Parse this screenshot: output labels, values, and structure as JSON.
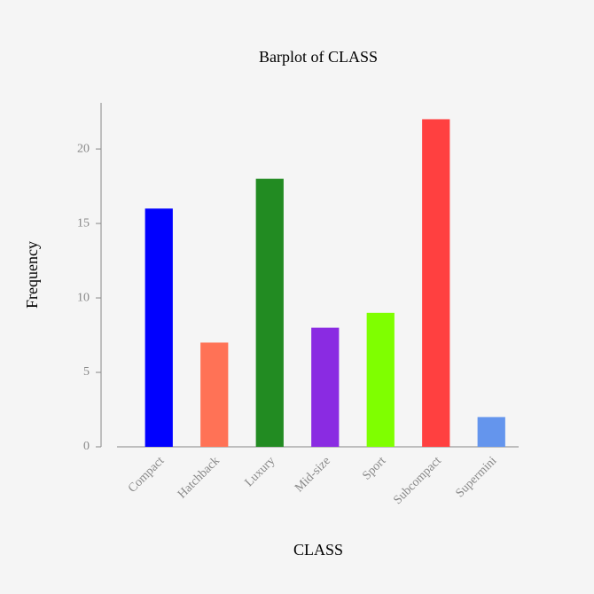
{
  "chart_data": {
    "type": "bar",
    "title": "Barplot of CLASS",
    "x_label": "CLASS",
    "y_label": "Frequency",
    "categories": [
      "Compact",
      "Hatchback",
      "Luxury",
      "Mid-size",
      "Sport",
      "Subcompact",
      "Supermini"
    ],
    "values": [
      16,
      7,
      18,
      8,
      9,
      22,
      2
    ],
    "colors": [
      "#0000ff",
      "#ff7256",
      "#228b22",
      "#8a2be2",
      "#7fff00",
      "#ff4040",
      "#6495ed"
    ],
    "ylim": [
      0,
      23.1
    ],
    "yticks": [
      0,
      5,
      10,
      15,
      20
    ],
    "grid": false
  }
}
